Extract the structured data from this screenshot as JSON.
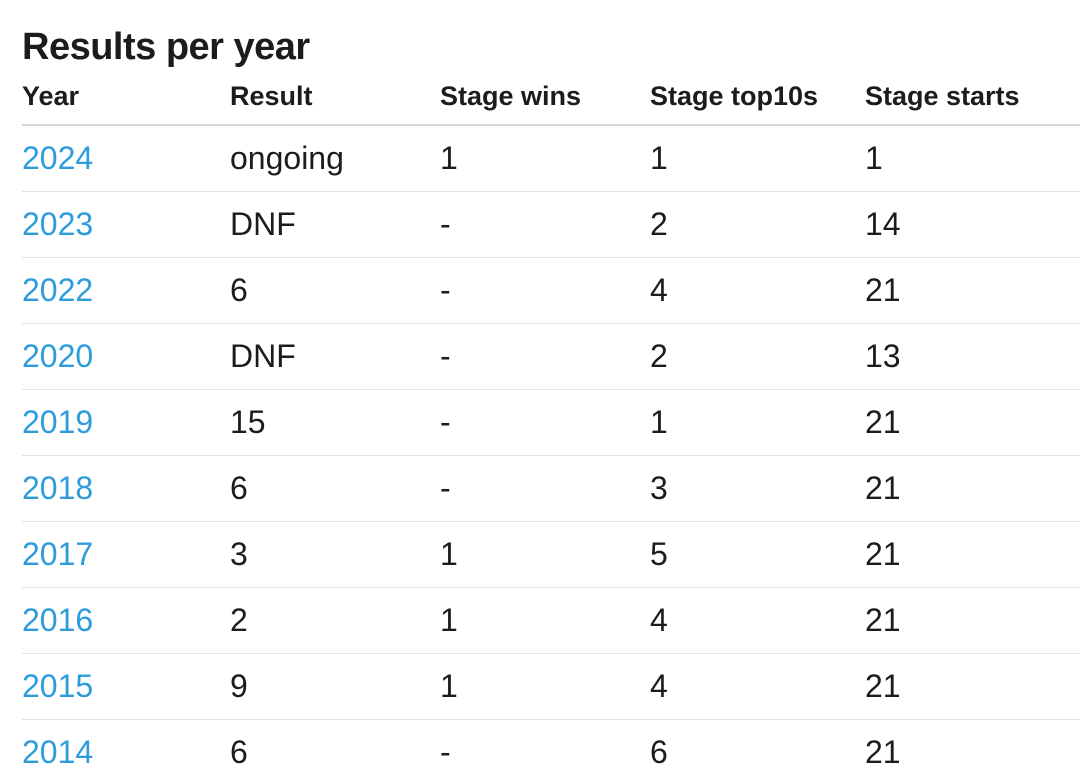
{
  "page": {
    "title": "Results per year"
  },
  "table": {
    "columns": [
      {
        "key": "year",
        "label": "Year"
      },
      {
        "key": "result",
        "label": "Result"
      },
      {
        "key": "stage_wins",
        "label": "Stage wins"
      },
      {
        "key": "stage_top10s",
        "label": "Stage top10s"
      },
      {
        "key": "stage_starts",
        "label": "Stage starts"
      }
    ],
    "rows": [
      {
        "year": "2024",
        "result": "ongoing",
        "stage_wins": "1",
        "stage_top10s": "1",
        "stage_starts": "1"
      },
      {
        "year": "2023",
        "result": "DNF",
        "stage_wins": "-",
        "stage_top10s": "2",
        "stage_starts": "14"
      },
      {
        "year": "2022",
        "result": "6",
        "stage_wins": "-",
        "stage_top10s": "4",
        "stage_starts": "21"
      },
      {
        "year": "2020",
        "result": "DNF",
        "stage_wins": "-",
        "stage_top10s": "2",
        "stage_starts": "13"
      },
      {
        "year": "2019",
        "result": "15",
        "stage_wins": "-",
        "stage_top10s": "1",
        "stage_starts": "21"
      },
      {
        "year": "2018",
        "result": "6",
        "stage_wins": "-",
        "stage_top10s": "3",
        "stage_starts": "21"
      },
      {
        "year": "2017",
        "result": "3",
        "stage_wins": "1",
        "stage_top10s": "5",
        "stage_starts": "21"
      },
      {
        "year": "2016",
        "result": "2",
        "stage_wins": "1",
        "stage_top10s": "4",
        "stage_starts": "21"
      },
      {
        "year": "2015",
        "result": "9",
        "stage_wins": "1",
        "stage_top10s": "4",
        "stage_starts": "21"
      },
      {
        "year": "2014",
        "result": "6",
        "stage_wins": "-",
        "stage_top10s": "6",
        "stage_starts": "21"
      }
    ],
    "colors": {
      "year_link": "#2d9cdb",
      "text": "#1c1c1c",
      "divider": "#e3e3e3",
      "header_divider": "#d6d6d6"
    }
  }
}
